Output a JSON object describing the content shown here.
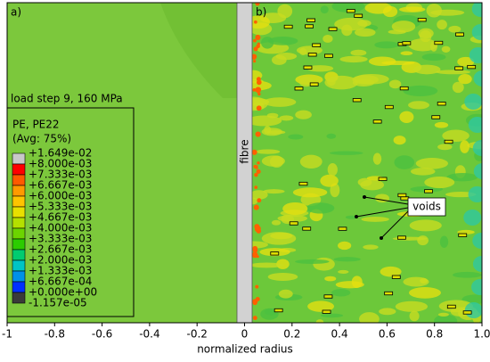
{
  "chart_data": {
    "type": "contour",
    "xlabel": "normalized radius",
    "xlim": [
      -1,
      1
    ],
    "xticks": [
      -1,
      -0.8,
      -0.6,
      -0.4,
      -0.2,
      0,
      0.2,
      0.4,
      0.6,
      0.8,
      {
        "value": 1,
        "label": "1.0"
      }
    ],
    "panel_labels": [
      "a)",
      "b)"
    ],
    "subtitle": "load step 9, 160 MPa",
    "legend_title": [
      "PE, PE22",
      "(Avg: 75%)"
    ],
    "legend_labels": [
      "+1.649e-02",
      "+8.000e-03",
      "+7.333e-03",
      "+6.667e-03",
      "+6.000e-03",
      "+5.333e-03",
      "+4.667e-03",
      "+4.000e-03",
      "+3.333e-03",
      "+2.667e-03",
      "+2.000e-03",
      "+1.333e-03",
      "+6.667e-04",
      "+0.000e+00",
      "-1.157e-05"
    ],
    "colors": [
      "#c8c8c8",
      "#ff0000",
      "#ff5a00",
      "#ff9a00",
      "#ffc400",
      "#e8e000",
      "#b4e000",
      "#6cd400",
      "#2ccc00",
      "#00cc70",
      "#00c4c4",
      "#0090e8",
      "#0030ff",
      "#3a3a3a"
    ],
    "fibre_label": "fibre",
    "annotation": "voids"
  }
}
